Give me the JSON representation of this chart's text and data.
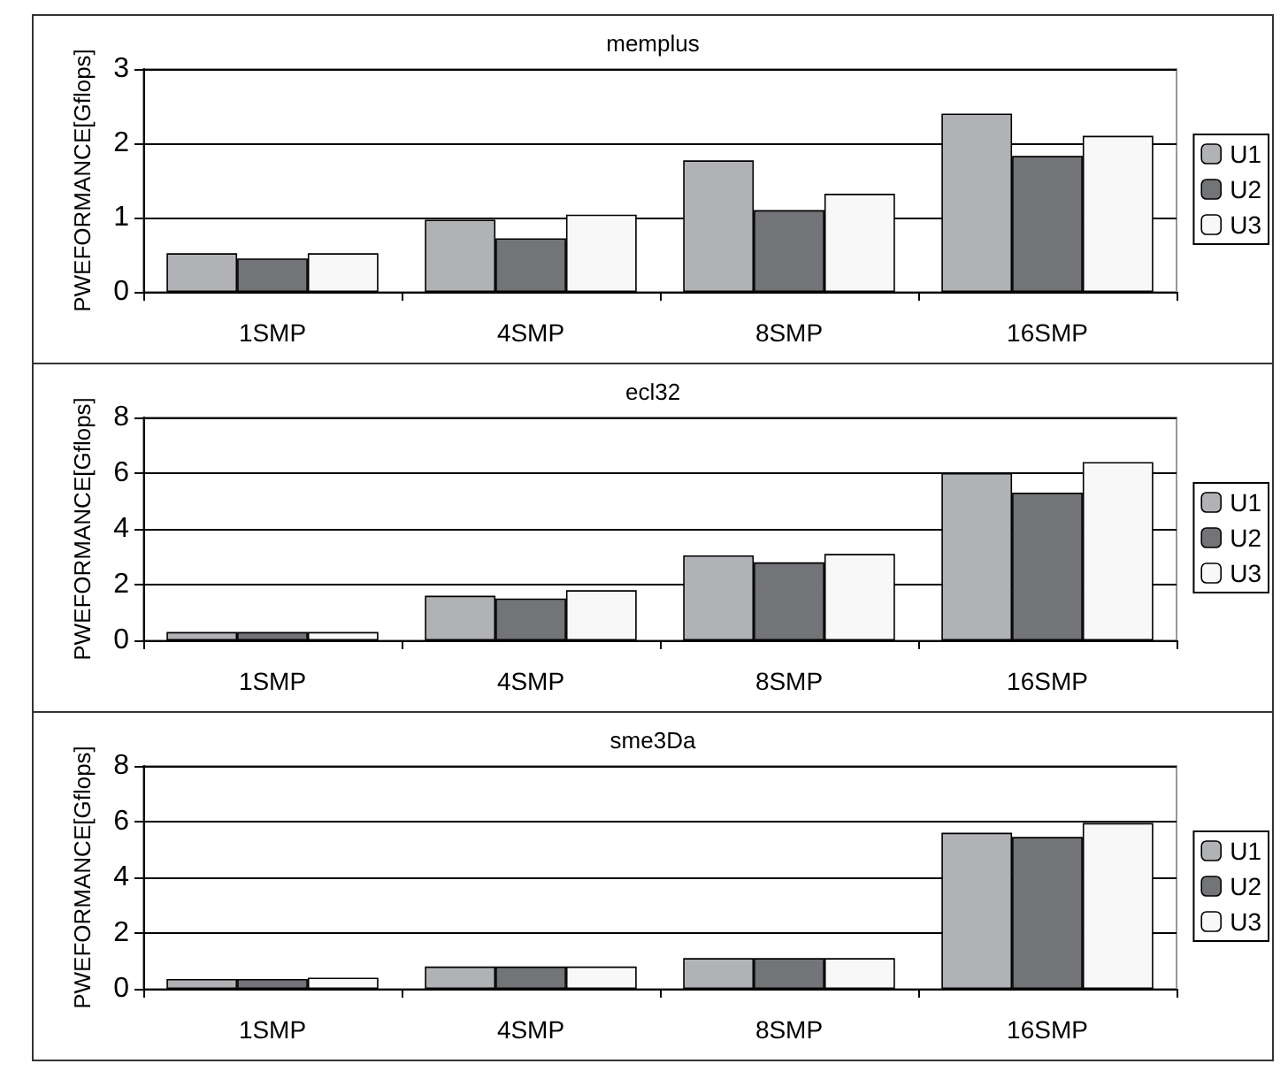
{
  "chart_data": [
    {
      "type": "bar",
      "title": "memplus",
      "ylabel": "PWEFORMANCE[Gflops]",
      "categories": [
        "1SMP",
        "4SMP",
        "8SMP",
        "16SMP"
      ],
      "ylim": [
        0,
        3
      ],
      "yticks": [
        0,
        1,
        2,
        3
      ],
      "grid": "y",
      "legend": "right",
      "series": [
        {
          "name": "U1",
          "color": "#b0b2b6",
          "values": [
            0.52,
            0.97,
            1.77,
            2.4
          ]
        },
        {
          "name": "U2",
          "color": "#737478",
          "values": [
            0.45,
            0.72,
            1.1,
            1.83
          ]
        },
        {
          "name": "U3",
          "color": "#f8f8f8",
          "values": [
            0.52,
            1.04,
            1.32,
            2.1
          ]
        }
      ]
    },
    {
      "type": "bar",
      "title": "ecl32",
      "ylabel": "PWEFORMANCE[Gflops]",
      "categories": [
        "1SMP",
        "4SMP",
        "8SMP",
        "16SMP"
      ],
      "ylim": [
        0,
        8
      ],
      "yticks": [
        0,
        2,
        4,
        6,
        8
      ],
      "grid": "y",
      "legend": "right",
      "series": [
        {
          "name": "U1",
          "color": "#b0b2b6",
          "values": [
            0.3,
            1.6,
            3.05,
            6.0
          ]
        },
        {
          "name": "U2",
          "color": "#737478",
          "values": [
            0.3,
            1.5,
            2.8,
            5.3
          ]
        },
        {
          "name": "U3",
          "color": "#f8f8f8",
          "values": [
            0.3,
            1.8,
            3.1,
            6.4
          ]
        }
      ]
    },
    {
      "type": "bar",
      "title": "sme3Da",
      "ylabel": "PWEFORMANCE[Gflops]",
      "categories": [
        "1SMP",
        "4SMP",
        "8SMP",
        "16SMP"
      ],
      "ylim": [
        0,
        8
      ],
      "yticks": [
        0,
        2,
        4,
        6,
        8
      ],
      "grid": "y",
      "legend": "right",
      "series": [
        {
          "name": "U1",
          "color": "#b0b2b6",
          "values": [
            0.35,
            0.8,
            1.1,
            5.6
          ]
        },
        {
          "name": "U2",
          "color": "#737478",
          "values": [
            0.35,
            0.8,
            1.1,
            5.45
          ]
        },
        {
          "name": "U3",
          "color": "#f8f8f8",
          "values": [
            0.4,
            0.8,
            1.1,
            5.95
          ]
        }
      ]
    }
  ]
}
